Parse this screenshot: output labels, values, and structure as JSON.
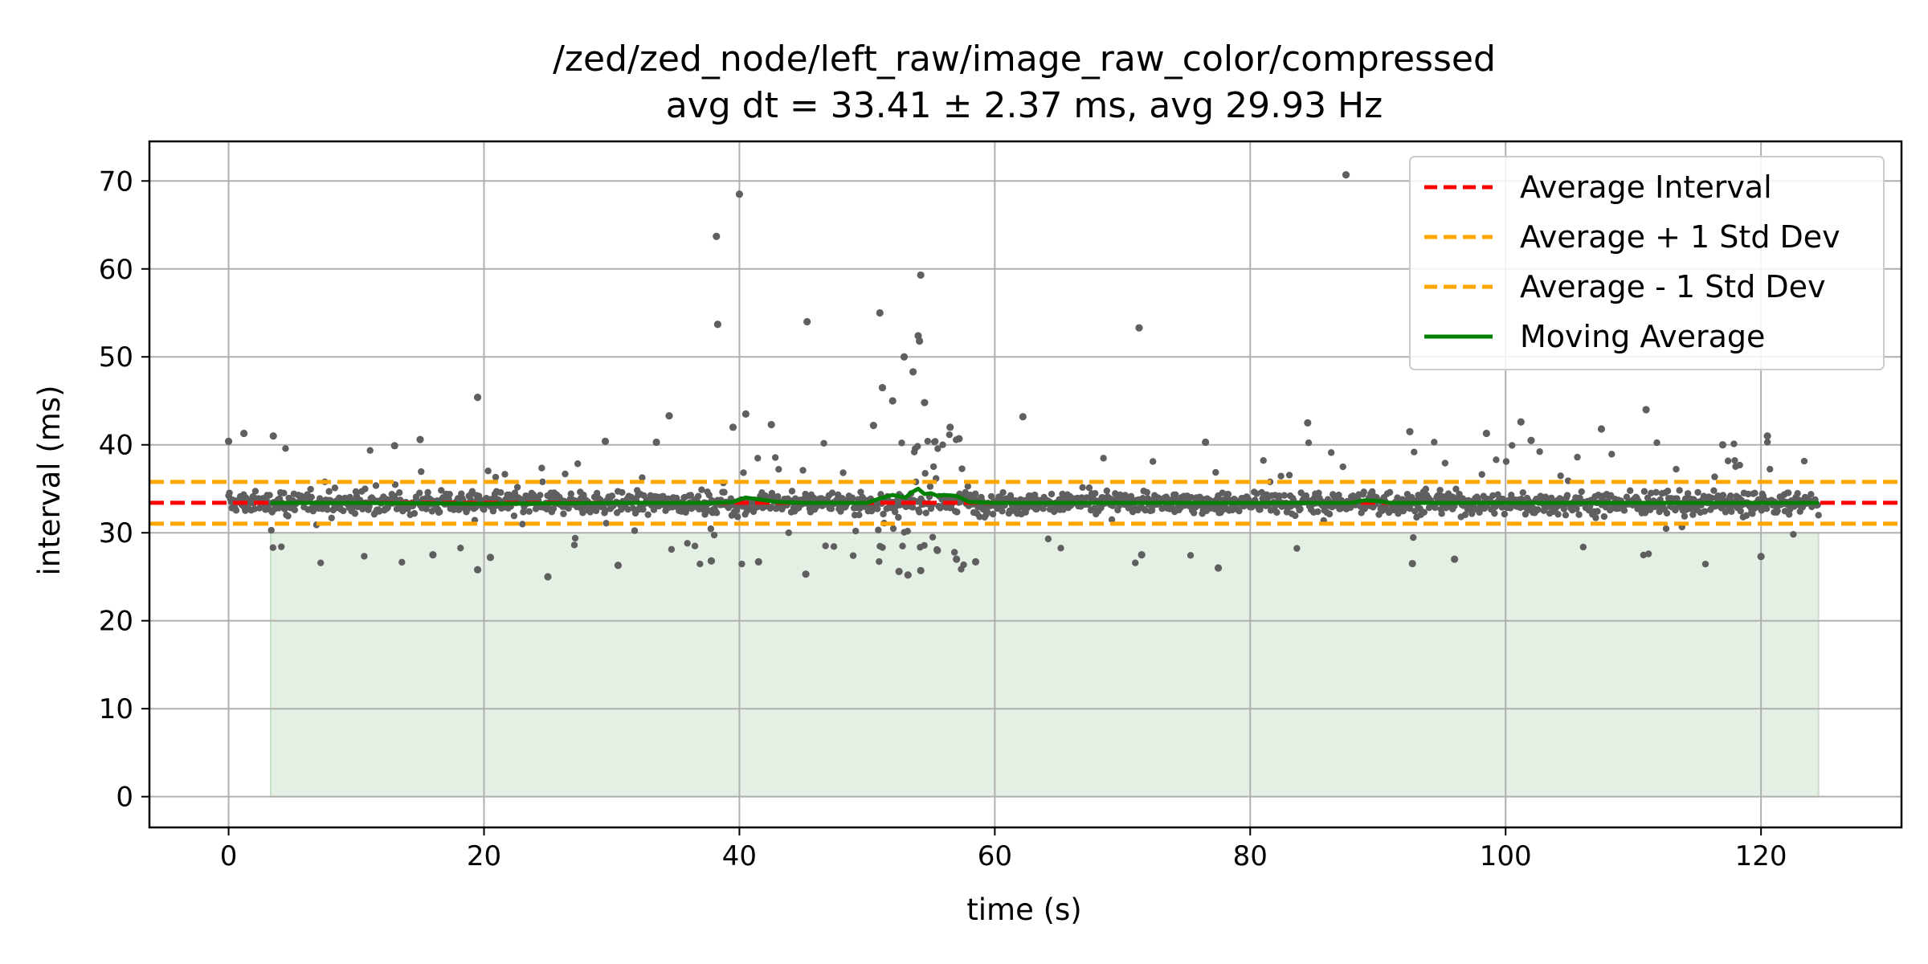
{
  "chart_data": {
    "type": "scatter",
    "title": "/zed/zed_node/left_raw/image_raw_color/compressed",
    "subtitle": "avg dt = 33.41 ± 2.37 ms, avg 29.93 Hz",
    "xlabel": "time (s)",
    "ylabel": "interval (ms)",
    "xlim": [
      -6.2,
      131
    ],
    "ylim": [
      -3.5,
      74.5
    ],
    "xticks": [
      0,
      20,
      40,
      60,
      80,
      100,
      120
    ],
    "yticks": [
      0,
      10,
      20,
      30,
      40,
      50,
      60,
      70
    ],
    "grid": true,
    "legend_position": "top-right",
    "colors": {
      "points": "#5f5f5f",
      "average": "#ff0000",
      "std_band": "#ffa500",
      "moving_average": "#008000",
      "fill": "#e5f0e5"
    },
    "average_interval": 33.41,
    "std_dev": 2.37,
    "time_range": [
      0,
      124.5
    ],
    "fill_region": {
      "x": [
        3.3,
        124.5
      ],
      "y": [
        0,
        30
      ]
    },
    "series": [
      {
        "name": "Average Interval",
        "type": "hline",
        "value": 33.41,
        "style": "dashed"
      },
      {
        "name": "Average + 1 Std Dev",
        "type": "hline",
        "value": 35.78,
        "style": "dashed"
      },
      {
        "name": "Average - 1 Std Dev",
        "type": "hline",
        "value": 31.04,
        "style": "dashed"
      },
      {
        "name": "Moving Average",
        "type": "line",
        "x": [
          3.3,
          10,
          20,
          30,
          38,
          39.5,
          40.5,
          41.5,
          43,
          45,
          50,
          51,
          52,
          53,
          53.5,
          54,
          54.5,
          55,
          55.5,
          56,
          57,
          58,
          60,
          70,
          80,
          88,
          89,
          90,
          91,
          100,
          110,
          124.5
        ],
        "y": [
          33.4,
          33.4,
          33.3,
          33.4,
          33.4,
          33.5,
          34.0,
          33.8,
          33.5,
          33.4,
          33.4,
          33.9,
          34.3,
          34.0,
          34.6,
          35.0,
          34.4,
          34.5,
          34.2,
          34.3,
          34.2,
          33.5,
          33.4,
          33.4,
          33.4,
          33.4,
          33.7,
          33.6,
          33.4,
          33.4,
          33.4,
          33.4
        ]
      }
    ],
    "outliers": [
      {
        "x": 87.5,
        "y": 70.7
      },
      {
        "x": 40.0,
        "y": 68.5
      },
      {
        "x": 38.2,
        "y": 63.7
      },
      {
        "x": 54.2,
        "y": 59.3
      },
      {
        "x": 51.0,
        "y": 55.0
      },
      {
        "x": 45.3,
        "y": 54.0
      },
      {
        "x": 38.3,
        "y": 53.7
      },
      {
        "x": 71.3,
        "y": 53.3
      },
      {
        "x": 54.0,
        "y": 52.4
      },
      {
        "x": 54.1,
        "y": 51.8
      },
      {
        "x": 52.9,
        "y": 50.0
      },
      {
        "x": 53.6,
        "y": 48.3
      },
      {
        "x": 19.5,
        "y": 45.4
      },
      {
        "x": 51.2,
        "y": 46.5
      },
      {
        "x": 52.0,
        "y": 45.0
      },
      {
        "x": 54.5,
        "y": 44.8
      },
      {
        "x": 40.5,
        "y": 43.5
      },
      {
        "x": 62.2,
        "y": 43.2
      },
      {
        "x": 111.0,
        "y": 44.0
      },
      {
        "x": 84.5,
        "y": 42.5
      },
      {
        "x": 101.2,
        "y": 42.6
      },
      {
        "x": 34.5,
        "y": 43.3
      },
      {
        "x": 50.5,
        "y": 42.2
      },
      {
        "x": 42.5,
        "y": 42.3
      },
      {
        "x": 56.5,
        "y": 42.0
      },
      {
        "x": 39.5,
        "y": 42.0
      },
      {
        "x": 1.2,
        "y": 41.3
      },
      {
        "x": 3.5,
        "y": 41.0
      },
      {
        "x": 98.5,
        "y": 41.3
      },
      {
        "x": 107.5,
        "y": 41.8
      },
      {
        "x": 120.5,
        "y": 41.0
      },
      {
        "x": 92.5,
        "y": 41.5
      },
      {
        "x": 0.0,
        "y": 40.4
      },
      {
        "x": 15.0,
        "y": 40.6
      },
      {
        "x": 57.2,
        "y": 40.7
      },
      {
        "x": 76.5,
        "y": 40.3
      },
      {
        "x": 102.0,
        "y": 40.5
      },
      {
        "x": 117.0,
        "y": 40.0
      },
      {
        "x": 13.0,
        "y": 39.9
      },
      {
        "x": 29.5,
        "y": 40.4
      },
      {
        "x": 33.5,
        "y": 40.3
      },
      {
        "x": 25.0,
        "y": 25.0
      },
      {
        "x": 19.5,
        "y": 25.8
      },
      {
        "x": 45.2,
        "y": 25.3
      },
      {
        "x": 53.2,
        "y": 25.2
      },
      {
        "x": 52.5,
        "y": 25.6
      },
      {
        "x": 54.2,
        "y": 25.7
      },
      {
        "x": 77.5,
        "y": 26.0
      },
      {
        "x": 30.5,
        "y": 26.3
      },
      {
        "x": 92.7,
        "y": 26.5
      },
      {
        "x": 58.5,
        "y": 26.7
      },
      {
        "x": 120.0,
        "y": 27.3
      },
      {
        "x": 37.8,
        "y": 26.8
      },
      {
        "x": 96.0,
        "y": 27.0
      },
      {
        "x": 20.5,
        "y": 27.2
      },
      {
        "x": 16.0,
        "y": 27.5
      },
      {
        "x": 41.5,
        "y": 26.7
      },
      {
        "x": 57.0,
        "y": 27.0
      },
      {
        "x": 55.5,
        "y": 28.0
      },
      {
        "x": 71.5,
        "y": 27.5
      }
    ]
  }
}
